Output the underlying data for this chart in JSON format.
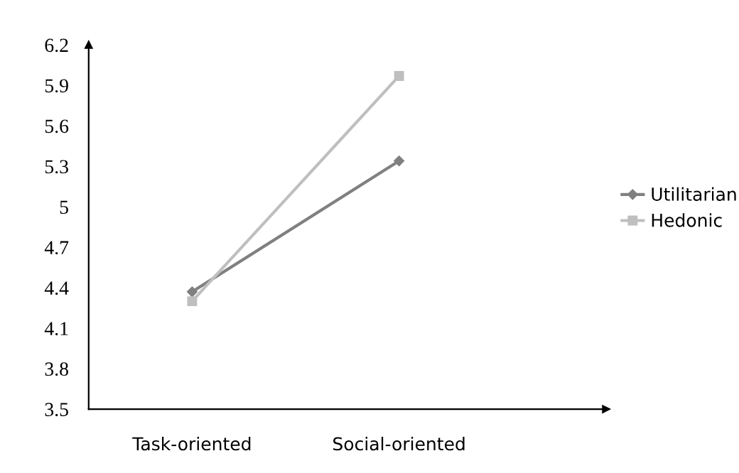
{
  "chart_data": {
    "type": "line",
    "categories": [
      "Task-oriented",
      "Social-oriented"
    ],
    "series": [
      {
        "name": "Utilitarian",
        "color": "#808080",
        "marker": "diamond",
        "values": [
          4.37,
          5.34
        ]
      },
      {
        "name": "Hedonic",
        "color": "#bfbfbf",
        "marker": "square",
        "values": [
          4.3,
          5.97
        ]
      }
    ],
    "ylim": [
      3.5,
      6.2
    ],
    "yticks": [
      3.5,
      3.8,
      4.1,
      4.4,
      4.7,
      5,
      5.3,
      5.6,
      5.9,
      6.2
    ],
    "grid": false,
    "legend": "right"
  }
}
